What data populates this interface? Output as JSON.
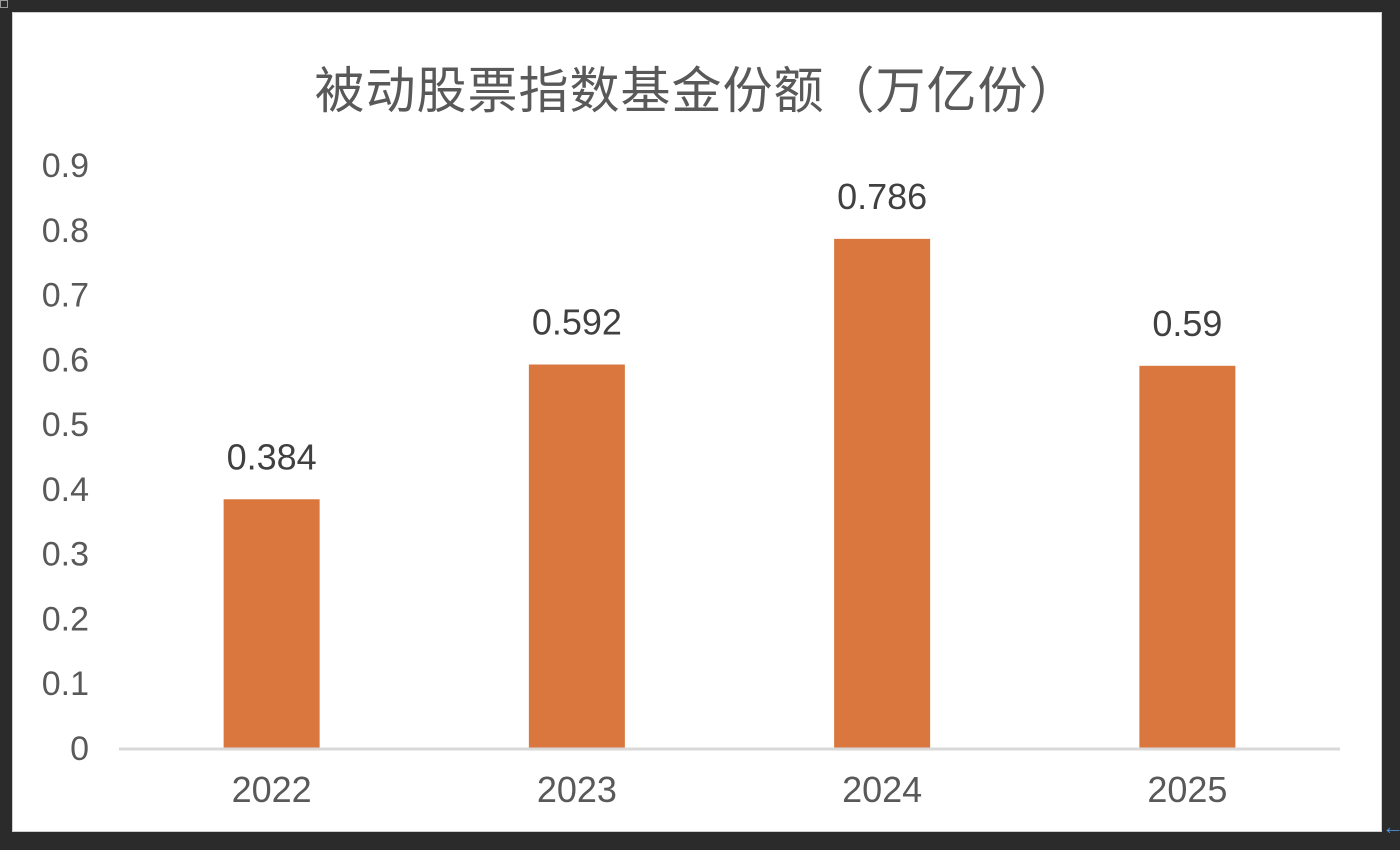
{
  "chart_data": {
    "type": "bar",
    "title": "被动股票指数基金份额（万亿份）",
    "categories": [
      "2022",
      "2023",
      "2024",
      "2025"
    ],
    "values": [
      0.384,
      0.592,
      0.786,
      0.59
    ],
    "data_labels": [
      "0.384",
      "0.592",
      "0.786",
      "0.59"
    ],
    "ylim": [
      0,
      0.9
    ],
    "yticks": [
      "0",
      "0.1",
      "0.2",
      "0.3",
      "0.4",
      "0.5",
      "0.6",
      "0.7",
      "0.8",
      "0.9"
    ],
    "xlabel": "",
    "ylabel": "",
    "grid": false,
    "legend": "none",
    "bar_color": "#d9773f",
    "axis_color": "#d9d9d9"
  }
}
